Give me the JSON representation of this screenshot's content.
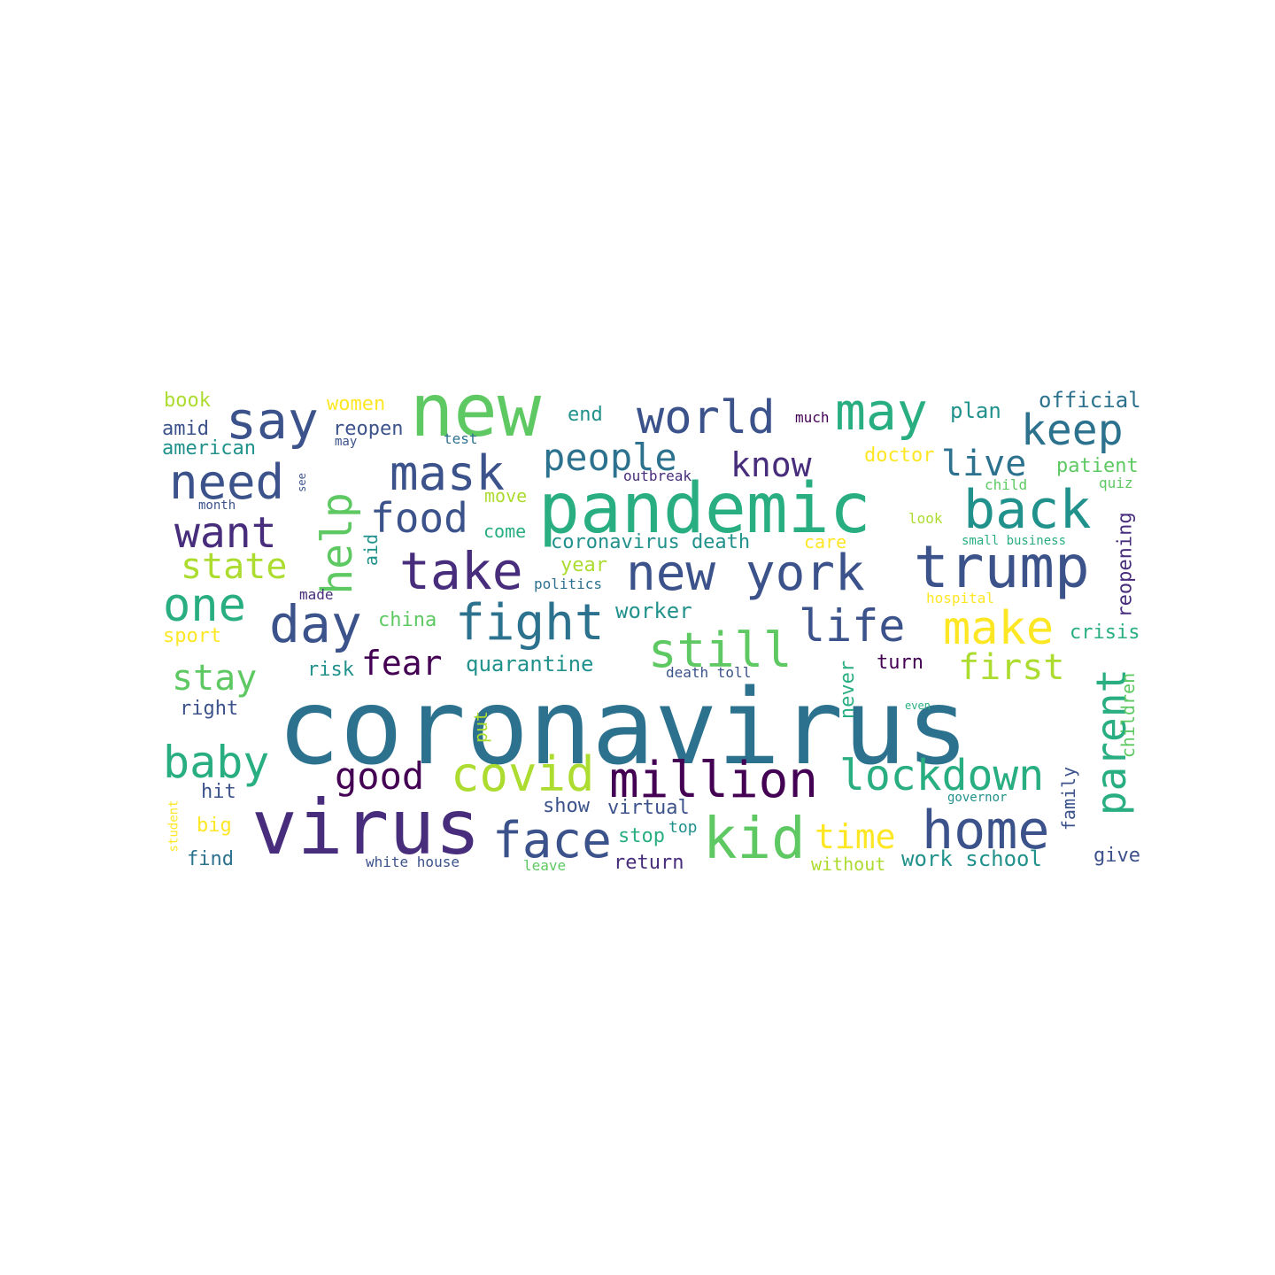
{
  "palette": {
    "v1": "#440154",
    "v2": "#472d7b",
    "v3": "#3b528b",
    "v4": "#2c728e",
    "v5": "#21918c",
    "v6": "#28ae80",
    "v7": "#5ec962",
    "v8": "#addc30",
    "v9": "#fde725"
  },
  "words": [
    {
      "text": "coronavirus",
      "color": "v4"
    },
    {
      "text": "pandemic",
      "color": "v6"
    },
    {
      "text": "virus",
      "color": "v2"
    },
    {
      "text": "new",
      "color": "v7"
    },
    {
      "text": "trump",
      "color": "v3"
    },
    {
      "text": "new york",
      "color": "v3"
    },
    {
      "text": "kid",
      "color": "v7"
    },
    {
      "text": "home",
      "color": "v3"
    },
    {
      "text": "million",
      "color": "v1"
    },
    {
      "text": "face",
      "color": "v3"
    },
    {
      "text": "covid",
      "color": "v8"
    },
    {
      "text": "world",
      "color": "v3"
    },
    {
      "text": "may",
      "color": "v6"
    },
    {
      "text": "say",
      "color": "v3"
    },
    {
      "text": "back",
      "color": "v5"
    },
    {
      "text": "take",
      "color": "v2"
    },
    {
      "text": "fight",
      "color": "v4"
    },
    {
      "text": "need",
      "color": "v3"
    },
    {
      "text": "mask",
      "color": "v3"
    },
    {
      "text": "day",
      "color": "v3"
    },
    {
      "text": "still",
      "color": "v7"
    },
    {
      "text": "make",
      "color": "v9"
    },
    {
      "text": "lockdown",
      "color": "v6"
    },
    {
      "text": "keep",
      "color": "v4"
    },
    {
      "text": "life",
      "color": "v3"
    },
    {
      "text": "one",
      "color": "v6"
    },
    {
      "text": "baby",
      "color": "v6"
    },
    {
      "text": "help",
      "color": "v7"
    },
    {
      "text": "parent",
      "color": "v6"
    },
    {
      "text": "want",
      "color": "v2"
    },
    {
      "text": "food",
      "color": "v3"
    },
    {
      "text": "people",
      "color": "v4"
    },
    {
      "text": "know",
      "color": "v2"
    },
    {
      "text": "live",
      "color": "v4"
    },
    {
      "text": "good",
      "color": "v1"
    },
    {
      "text": "time",
      "color": "v9"
    },
    {
      "text": "first",
      "color": "v8"
    },
    {
      "text": "state",
      "color": "v8"
    },
    {
      "text": "stay",
      "color": "v7"
    },
    {
      "text": "fear",
      "color": "v1"
    },
    {
      "text": "official",
      "color": "v4"
    },
    {
      "text": "plan",
      "color": "v5"
    },
    {
      "text": "patient",
      "color": "v7"
    },
    {
      "text": "crisis",
      "color": "v6"
    },
    {
      "text": "quarantine",
      "color": "v5"
    },
    {
      "text": "worker",
      "color": "v5"
    },
    {
      "text": "coronavirus death",
      "color": "v5"
    },
    {
      "text": "work school",
      "color": "v5"
    },
    {
      "text": "book",
      "color": "v8"
    },
    {
      "text": "amid",
      "color": "v3"
    },
    {
      "text": "american",
      "color": "v5"
    },
    {
      "text": "women",
      "color": "v9"
    },
    {
      "text": "reopen",
      "color": "v3"
    },
    {
      "text": "end",
      "color": "v5"
    },
    {
      "text": "test",
      "color": "v4"
    },
    {
      "text": "doctor",
      "color": "v9"
    },
    {
      "text": "much",
      "color": "v1"
    },
    {
      "text": "year",
      "color": "v8"
    },
    {
      "text": "politics",
      "color": "v4"
    },
    {
      "text": "china",
      "color": "v7"
    },
    {
      "text": "sport",
      "color": "v9"
    },
    {
      "text": "risk",
      "color": "v5"
    },
    {
      "text": "right",
      "color": "v3"
    },
    {
      "text": "hit",
      "color": "v3"
    },
    {
      "text": "big",
      "color": "v9"
    },
    {
      "text": "find",
      "color": "v4"
    },
    {
      "text": "show",
      "color": "v3"
    },
    {
      "text": "virtual",
      "color": "v3"
    },
    {
      "text": "stop",
      "color": "v6"
    },
    {
      "text": "top",
      "color": "v5"
    },
    {
      "text": "return",
      "color": "v2"
    },
    {
      "text": "white house",
      "color": "v3"
    },
    {
      "text": "leave",
      "color": "v7"
    },
    {
      "text": "without",
      "color": "v8"
    },
    {
      "text": "give",
      "color": "v3"
    },
    {
      "text": "turn",
      "color": "v1"
    },
    {
      "text": "death toll",
      "color": "v3"
    },
    {
      "text": "move",
      "color": "v8"
    },
    {
      "text": "come",
      "color": "v6"
    },
    {
      "text": "care",
      "color": "v9"
    },
    {
      "text": "look",
      "color": "v8"
    },
    {
      "text": "small business",
      "color": "v6"
    },
    {
      "text": "outbreak",
      "color": "v2"
    },
    {
      "text": "child",
      "color": "v7"
    },
    {
      "text": "quiz",
      "color": "v7"
    },
    {
      "text": "hospital",
      "color": "v9"
    },
    {
      "text": "made",
      "color": "v2"
    },
    {
      "text": "month",
      "color": "v3"
    },
    {
      "text": "governor",
      "color": "v5"
    },
    {
      "text": "even",
      "color": "v6"
    },
    {
      "text": "may",
      "color": "v3"
    },
    {
      "text": "reopening",
      "color": "v2"
    },
    {
      "text": "children",
      "color": "v7"
    },
    {
      "text": "family",
      "color": "v3"
    },
    {
      "text": "never",
      "color": "v6"
    },
    {
      "text": "put",
      "color": "v8"
    },
    {
      "text": "aid",
      "color": "v5"
    },
    {
      "text": "see",
      "color": "v3"
    },
    {
      "text": "student",
      "color": "v9"
    }
  ]
}
